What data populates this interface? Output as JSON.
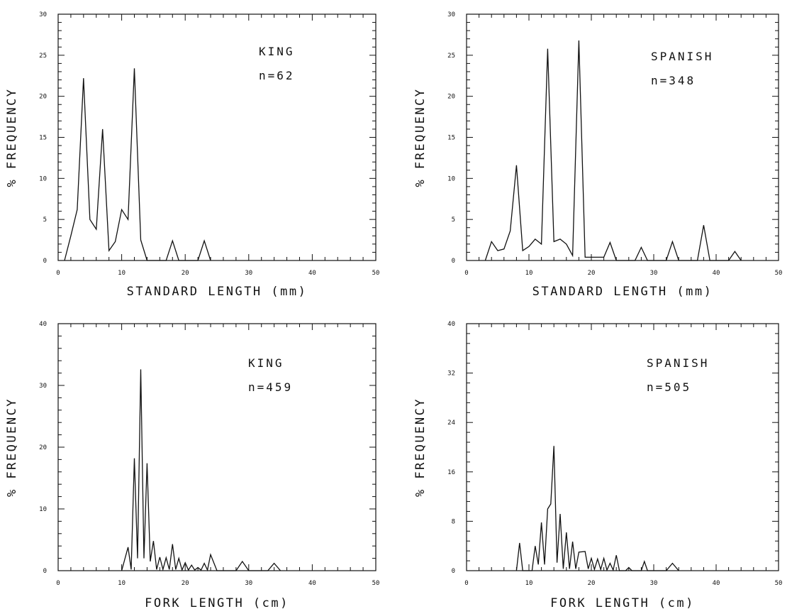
{
  "chart_data": [
    {
      "type": "line",
      "species": "KING",
      "n_label": "n=62",
      "xlabel": "STANDARD LENGTH  (mm)",
      "ylabel": "% FREQUENCY",
      "xlim": [
        0,
        50
      ],
      "ylim": [
        0,
        30
      ],
      "xticks": [
        "0",
        "10",
        "20",
        "30",
        "40",
        "50"
      ],
      "yticks": [
        "0",
        "5",
        "10",
        "15",
        "20",
        "25",
        "30"
      ],
      "x": [
        1,
        2,
        3,
        4,
        5,
        6,
        7,
        8,
        9,
        10,
        11,
        12,
        13,
        14,
        15,
        16,
        17,
        18,
        19,
        20,
        21,
        22,
        23,
        24
      ],
      "y": [
        0,
        3,
        6.2,
        22.2,
        5,
        3.8,
        16,
        1.2,
        2.3,
        6.2,
        5,
        23.4,
        2.5,
        0,
        0,
        0,
        0,
        2.4,
        0,
        0,
        0,
        0,
        2.4,
        0
      ]
    },
    {
      "type": "line",
      "species": "SPANISH",
      "n_label": "n=348",
      "xlabel": "STANDARD LENGTH  (mm)",
      "ylabel": "% FREQUENCY",
      "xlim": [
        0,
        50
      ],
      "ylim": [
        0,
        30
      ],
      "xticks": [
        "0",
        "10",
        "20",
        "30",
        "40",
        "50"
      ],
      "yticks": [
        "0",
        "5",
        "10",
        "15",
        "20",
        "25",
        "30"
      ],
      "x": [
        3,
        4,
        5,
        6,
        7,
        8,
        9,
        10,
        11,
        12,
        13,
        14,
        15,
        16,
        17,
        18,
        19,
        20,
        21,
        22,
        23,
        24,
        27,
        28,
        29,
        32,
        33,
        34,
        37,
        38,
        39,
        42,
        43,
        44
      ],
      "y": [
        0,
        2.3,
        1.2,
        1.4,
        3.6,
        11.6,
        1.2,
        1.7,
        2.6,
        2,
        25.8,
        2.3,
        2.6,
        2,
        0.6,
        26.8,
        0.4,
        0.4,
        0.4,
        0.4,
        2.2,
        0,
        0,
        1.6,
        0,
        0,
        2.3,
        0,
        0,
        4.3,
        0,
        0,
        1.1,
        0
      ]
    },
    {
      "type": "line",
      "species": "KING",
      "n_label": "n=459",
      "xlabel": "FORK LENGTH  (cm)",
      "ylabel": "% FREQUENCY",
      "xlim": [
        0,
        50
      ],
      "ylim": [
        0,
        40
      ],
      "xticks": [
        "0",
        "10",
        "20",
        "30",
        "40",
        "50"
      ],
      "yticks": [
        "0",
        "10",
        "20",
        "30",
        "40"
      ],
      "x": [
        10,
        11,
        11.5,
        12,
        12.5,
        13,
        13.5,
        14,
        14.5,
        15,
        15.5,
        16,
        16.5,
        17,
        17.5,
        18,
        18.5,
        19,
        19.5,
        20,
        20.5,
        21,
        21.5,
        22,
        22.5,
        23,
        23.5,
        24,
        25,
        28,
        29,
        30,
        33,
        34,
        35
      ],
      "y": [
        0,
        3.8,
        0.2,
        18.2,
        2,
        32.6,
        2,
        17.4,
        1.5,
        4.8,
        0.2,
        2.2,
        0.2,
        2.1,
        0.2,
        4.3,
        0.2,
        2,
        0.1,
        1.3,
        0.1,
        0.9,
        0.1,
        0.5,
        0.1,
        1.2,
        0.1,
        2.6,
        0,
        0,
        1.5,
        0,
        0,
        1.2,
        0
      ]
    },
    {
      "type": "line",
      "species": "SPANISH",
      "n_label": "n=505",
      "xlabel": "FORK LENGTH  (cm)",
      "ylabel": "% FREQUENCY",
      "xlim": [
        0,
        50
      ],
      "ylim": [
        0,
        40
      ],
      "xticks": [
        "0",
        "10",
        "20",
        "30",
        "40",
        "50"
      ],
      "yticks": [
        "0",
        "8",
        "16",
        "24",
        "32",
        "40"
      ],
      "x": [
        8,
        8.5,
        9,
        10.5,
        11,
        11.5,
        12,
        12.5,
        13,
        13.5,
        14,
        14.5,
        15,
        15.5,
        16,
        16.5,
        17,
        17.5,
        18,
        19,
        19.5,
        20,
        20.5,
        21,
        21.5,
        22,
        22.5,
        23,
        23.5,
        24,
        24.5,
        25.5,
        26,
        26.5,
        28,
        28.5,
        29,
        32,
        33,
        34
      ],
      "y": [
        0,
        4.5,
        0,
        0,
        4,
        1,
        7.8,
        1,
        10,
        10.8,
        20.2,
        1.3,
        9.2,
        0.3,
        6.2,
        0.3,
        4.7,
        0.3,
        3,
        3.1,
        0.3,
        2,
        0.2,
        1.9,
        0.2,
        2,
        0.1,
        1.2,
        0.1,
        2.5,
        0,
        0,
        0.5,
        0,
        0,
        1.5,
        0,
        0,
        1.2,
        0
      ]
    }
  ]
}
